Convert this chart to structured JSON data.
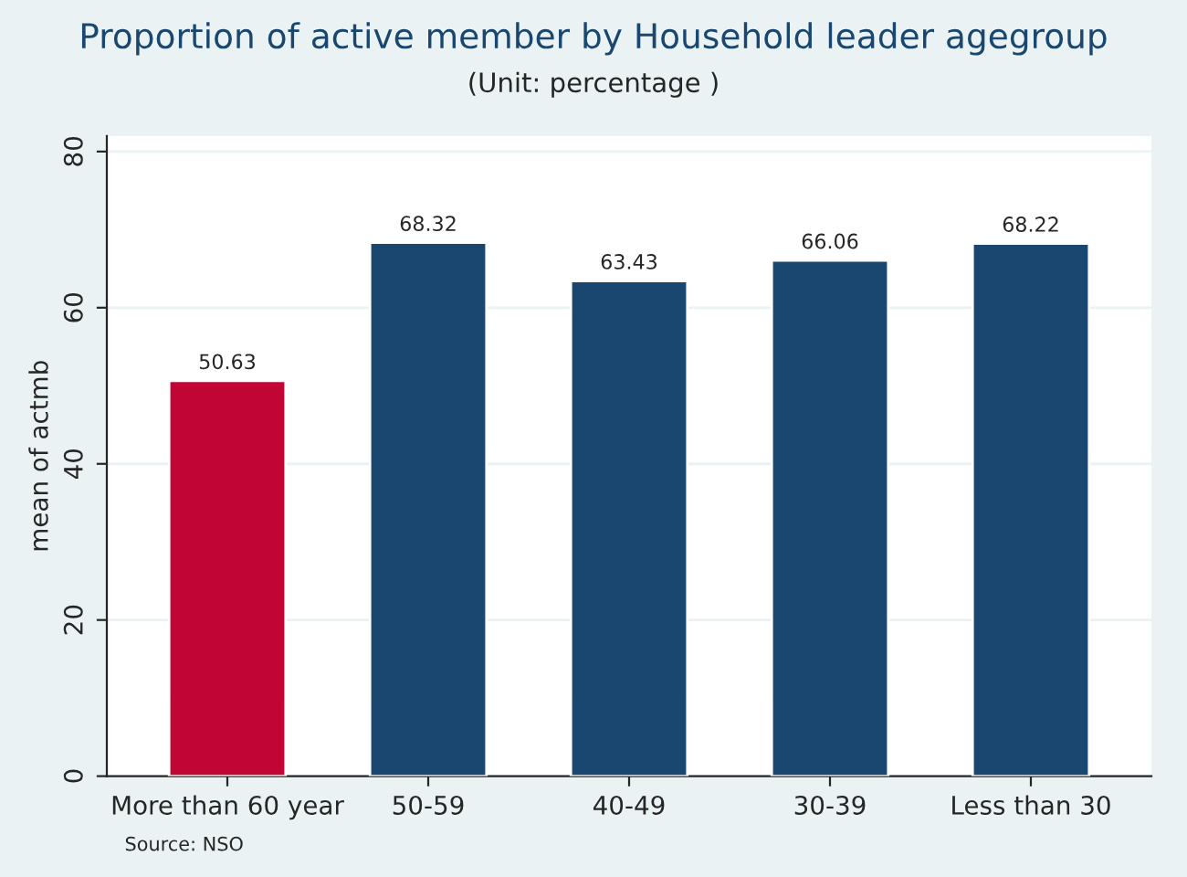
{
  "chart_data": {
    "type": "bar",
    "title": "Proportion of active member by Household leader agegroup",
    "subtitle": "(Unit: percentage )",
    "ylabel": "mean of actmb",
    "categories": [
      "More than 60 year",
      "50-59",
      "40-49",
      "30-39",
      "Less than 30"
    ],
    "values": [
      50.63,
      68.32,
      63.43,
      66.06,
      68.22
    ],
    "colors": [
      "#c10534",
      "#1a476f",
      "#1a476f",
      "#1a476f",
      "#1a476f"
    ],
    "data_labels": true,
    "ylim": [
      0,
      82
    ],
    "yticks": [
      0,
      20,
      40,
      60,
      80
    ],
    "grid": "y",
    "annotations": [
      "Source: NSO"
    ]
  }
}
